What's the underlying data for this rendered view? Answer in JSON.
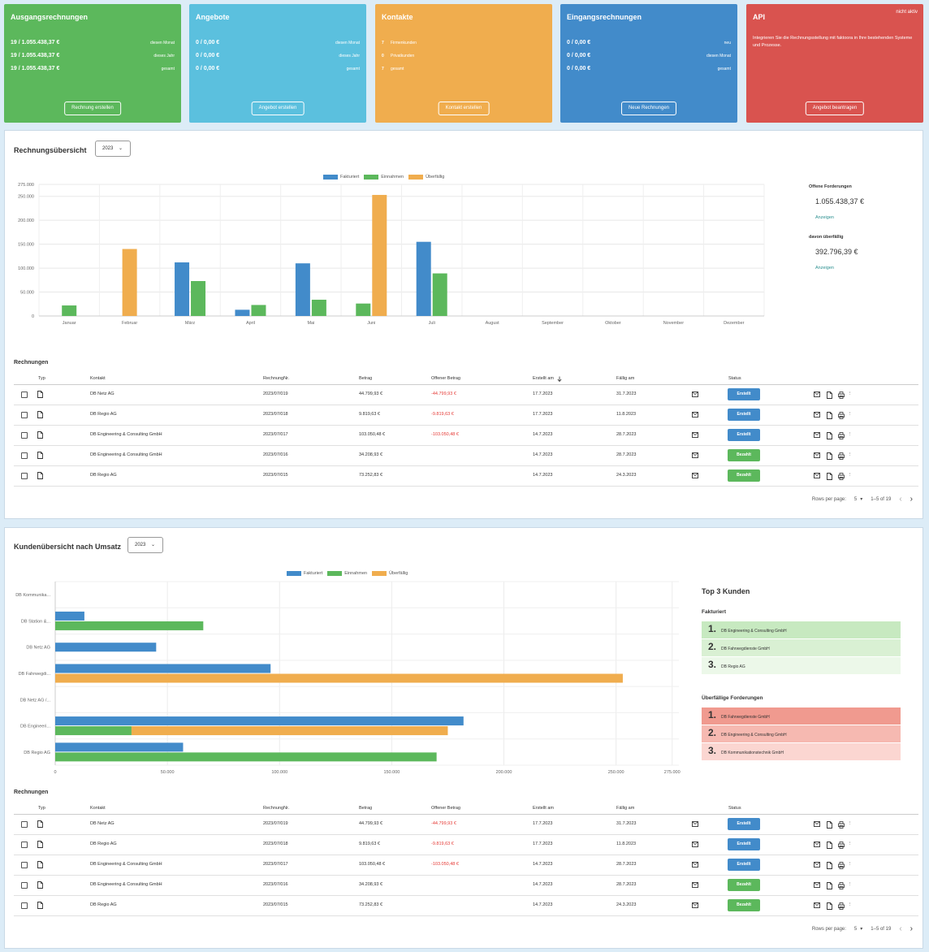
{
  "tiles": {
    "ausgang": {
      "title": "Ausgangsrechnungen",
      "rows": [
        {
          "value": "19 / 1.055.438,37 €",
          "label": "diesen Monat"
        },
        {
          "value": "19 / 1.055.438,37 €",
          "label": "dieses Jahr"
        },
        {
          "value": "19 / 1.055.438,37 €",
          "label": "gesamt"
        }
      ],
      "button": "Rechnung erstellen",
      "color": "#5cb85c"
    },
    "angebote": {
      "title": "Angebote",
      "rows": [
        {
          "value": "0 / 0,00 €",
          "label": "diesen Monat"
        },
        {
          "value": "0 / 0,00 €",
          "label": "dieses Jahr"
        },
        {
          "value": "0 / 0,00 €",
          "label": "gesamt"
        }
      ],
      "button": "Angebot erstellen",
      "color": "#5bc0de"
    },
    "kontakte": {
      "title": "Kontakte",
      "rows": [
        {
          "num": "7",
          "label": "Firmenkunden"
        },
        {
          "num": "0",
          "label": "Privatkunden"
        },
        {
          "num": "7",
          "label": "gesamt"
        }
      ],
      "button": "Kontakt erstellen",
      "color": "#f0ad4e"
    },
    "eingang": {
      "title": "Eingangsrechnungen",
      "rows": [
        {
          "value": "0 / 0,00 €",
          "label": "neu"
        },
        {
          "value": "0 / 0,00 €",
          "label": "diesen Monat"
        },
        {
          "value": "0 / 0,00 €",
          "label": "gesamt"
        }
      ],
      "button": "Neue Rechnungen",
      "color": "#428bca"
    },
    "api": {
      "title": "API",
      "badge": "nicht aktiv",
      "description": "Integrieren Sie die Rechnungsstellung mit faktoora in Ihre bestehenden Systeme und Prozesse.",
      "button": "Angebot beantragen",
      "color": "#d9534f"
    }
  },
  "overview": {
    "title": "Rechnungsübersicht",
    "year": "2023",
    "open_label": "Offene Forderungen",
    "open_value": "1.055.438,37 €",
    "open_link": "Anzeigen",
    "overdue_label": "davon überfällig",
    "overdue_value": "392.796,39 €",
    "overdue_link": "Anzeigen"
  },
  "customers": {
    "title": "Kundenübersicht nach Umsatz",
    "year": "2023",
    "top3_title": "Top 3 Kunden",
    "fakturiert_title": "Fakturiert",
    "fakturiert": [
      {
        "rank": "1.",
        "name": "DB Engineering & Consulting GmbH"
      },
      {
        "rank": "2.",
        "name": "DB Fahrwegdienste GmbH"
      },
      {
        "rank": "3.",
        "name": "DB Regio AG"
      }
    ],
    "overdue_title": "Überfällige Forderungen",
    "overdue": [
      {
        "rank": "1.",
        "name": "DB Fahrwegdienste GmbH"
      },
      {
        "rank": "2.",
        "name": "DB Engineering & Consulting GmbH"
      },
      {
        "rank": "3.",
        "name": "DB Kommunikationstechnik GmbH"
      }
    ]
  },
  "legend": {
    "fakturiert": "Fakturiert",
    "einnahmen": "Einnahmen",
    "ueberfaellig": "Überfällig"
  },
  "colors": {
    "fakturiert": "#428bca",
    "einnahmen": "#5cb85c",
    "ueberfaellig": "#f0ad4e",
    "erstellt": "#428bca",
    "bezahlt": "#5cb85c"
  },
  "chart_data": [
    {
      "type": "bar",
      "title": "Rechnungsübersicht",
      "categories": [
        "Januar",
        "Februar",
        "März",
        "April",
        "Mai",
        "Juni",
        "Juli",
        "August",
        "September",
        "Oktober",
        "November",
        "Dezember"
      ],
      "y_ticks": [
        "275.000",
        "250.000",
        "200.000",
        "150.000",
        "100.000",
        "50.000",
        "0"
      ],
      "y_tick_values": [
        275000,
        250000,
        200000,
        150000,
        100000,
        50000,
        0
      ],
      "ylim": [
        0,
        275000
      ],
      "series": [
        {
          "name": "Fakturiert",
          "values": [
            0,
            0,
            112000,
            13000,
            110000,
            0,
            155000,
            0,
            0,
            0,
            0,
            0
          ]
        },
        {
          "name": "Einnahmen",
          "values": [
            22000,
            0,
            73000,
            23000,
            34000,
            26000,
            89000,
            0,
            0,
            0,
            0,
            0
          ]
        },
        {
          "name": "Überfällig",
          "values": [
            0,
            140000,
            0,
            0,
            0,
            253000,
            0,
            0,
            0,
            0,
            0,
            0
          ]
        }
      ]
    },
    {
      "type": "bar",
      "orientation": "horizontal",
      "title": "Kundenübersicht nach Umsatz",
      "categories": [
        "DB Kommunika...",
        "DB Station &...",
        "DB Netz AG",
        "DB Fahrwegdi...",
        "DB Netz AG /...",
        "DB Engineeri...",
        "DB Regio AG"
      ],
      "x_ticks": [
        "0",
        "50.000",
        "100.000",
        "150.000",
        "200.000",
        "250.000",
        "275.000"
      ],
      "x_tick_values": [
        0,
        50000,
        100000,
        150000,
        200000,
        250000,
        275000
      ],
      "xlim": [
        0,
        278000
      ],
      "series": [
        {
          "name": "Fakturiert",
          "values": [
            0,
            13000,
            45000,
            96000,
            0,
            182000,
            57000
          ]
        },
        {
          "name": "Einnahmen",
          "values": [
            0,
            66000,
            0,
            0,
            0,
            34000,
            170000
          ]
        },
        {
          "name": "Überfällig",
          "values": [
            0,
            0,
            0,
            253000,
            0,
            175000,
            0
          ],
          "start": [
            0,
            0,
            0,
            0,
            0,
            34000,
            0
          ]
        }
      ]
    }
  ],
  "table_title": "Rechnungen",
  "table_headers": {
    "typ": "Typ",
    "kontakt": "Kontakt",
    "nr": "RechnungNr.",
    "betrag": "Betrag",
    "offen": "Offener Betrag",
    "erstellt": "Erstellt am",
    "faellig": "Fällig am",
    "status": "Status"
  },
  "rows": [
    {
      "kontakt": "DB Netz AG",
      "nr": "2023/07/019",
      "betrag": "44.799,93 €",
      "offen": "-44.799,93 €",
      "erstellt": "17.7.2023",
      "faellig": "31.7.2023",
      "status": "Erstellt",
      "paid": false
    },
    {
      "kontakt": "DB Regio AG",
      "nr": "2023/07/018",
      "betrag": "9.819,63 €",
      "offen": "-9.819,63 €",
      "erstellt": "17.7.2023",
      "faellig": "11.8.2023",
      "status": "Erstellt",
      "paid": false
    },
    {
      "kontakt": "DB Engineering & Consulting GmbH",
      "nr": "2023/07/017",
      "betrag": "103.050,48 €",
      "offen": "-103.050,48 €",
      "erstellt": "14.7.2023",
      "faellig": "28.7.2023",
      "status": "Erstellt",
      "paid": false
    },
    {
      "kontakt": "DB Engineering & Consulting GmbH",
      "nr": "2023/07/016",
      "betrag": "34.208,93 €",
      "offen": "",
      "erstellt": "14.7.2023",
      "faellig": "28.7.2023",
      "status": "Bezahlt",
      "paid": true
    },
    {
      "kontakt": "DB Regio AG",
      "nr": "2023/07/015",
      "betrag": "73.252,83 €",
      "offen": "",
      "erstellt": "14.7.2023",
      "faellig": "24.3.2023",
      "status": "Bezahlt",
      "paid": true
    }
  ],
  "pager": {
    "rows_label": "Rows per page:",
    "rows_value": "5",
    "range": "1–5 of 19",
    "prev": "‹",
    "next": "›"
  }
}
